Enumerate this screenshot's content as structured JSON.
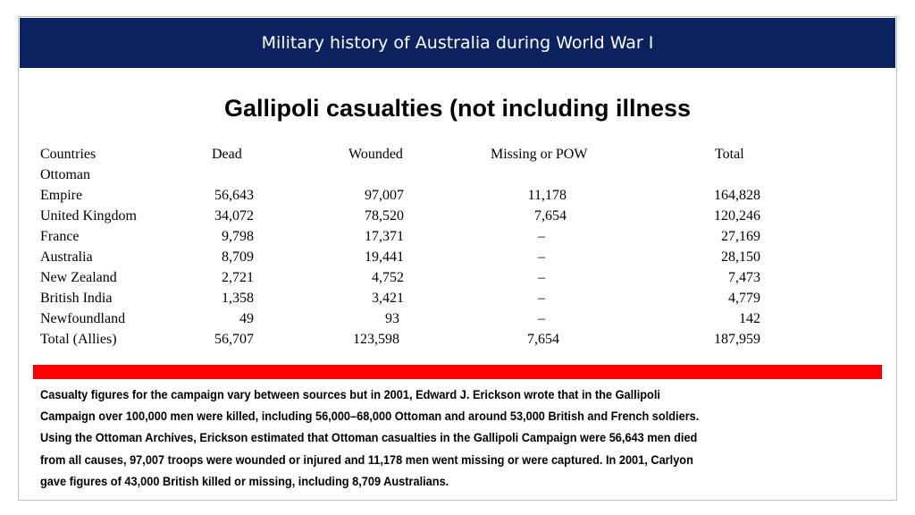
{
  "header": {
    "title": "Military history of Australia during World War I",
    "background_color": "#0b2260"
  },
  "main_title": "Gallipoli casualties (not including illness",
  "table": {
    "columns": [
      "Countries",
      "Dead",
      "Wounded",
      "Missing or  POW",
      "Total"
    ],
    "rows": [
      [
        "Ottoman",
        "",
        "",
        "",
        ""
      ],
      [
        "Empire",
        "56,643",
        "97,007",
        "11,178",
        "164,828"
      ],
      [
        "United Kingdom",
        "34,072",
        "78,520",
        "7,654",
        "120,246"
      ],
      [
        "France",
        "9,798",
        "17,371",
        "–",
        "27,169"
      ],
      [
        "Australia",
        "8,709",
        "19,441",
        "–",
        "28,150"
      ],
      [
        "New Zealand",
        "2,721",
        "4,752",
        "–",
        "7,473"
      ],
      [
        "British India",
        "1,358",
        "3,421",
        "–",
        "4,779"
      ],
      [
        "Newfoundland",
        "49",
        "93",
        "–",
        "142"
      ],
      [
        "Total (Allies)",
        "56,707",
        "123,598",
        "7,654",
        "187,959"
      ]
    ]
  },
  "divider_color": "#ff0000",
  "note_lines": [
    "Casualty figures for the campaign vary between sources but in 2001, Edward J. Erickson wrote that in the Gallipoli",
    "Campaign over 100,000 men were killed, including 56,000–68,000 Ottoman and around 53,000 British and French soldiers.",
    "Using the Ottoman Archives, Erickson estimated that Ottoman casualties in the Gallipoli Campaign were 56,643 men died",
    "from all causes, 97,007 troops were wounded or injured and 11,178 men went missing or were captured. In 2001, Carlyon",
    "gave figures of 43,000 British killed or missing, including 8,709 Australians."
  ]
}
